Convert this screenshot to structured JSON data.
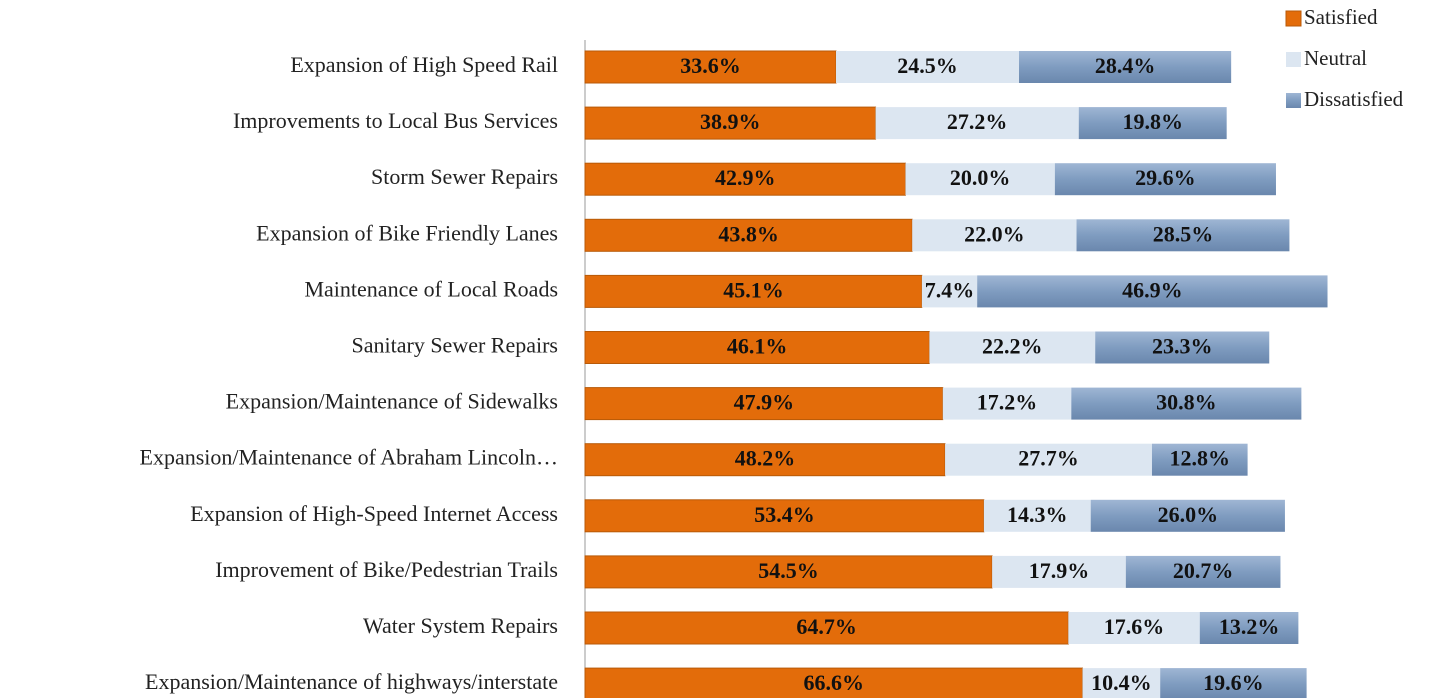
{
  "chart_data": {
    "type": "stacked_barh",
    "categories": [
      "Expansion of High Speed Rail",
      "Improvements to Local Bus Services",
      "Storm Sewer Repairs",
      "Expansion of Bike Friendly Lanes",
      "Maintenance of Local Roads",
      "Sanitary Sewer Repairs",
      "Expansion/Maintenance of Sidewalks",
      "Expansion/Maintenance of Abraham Lincoln…",
      "Expansion of High-Speed Internet Access",
      "Improvement of Bike/Pedestrian Trails",
      "Water System Repairs",
      "Expansion/Maintenance of highways/interstate"
    ],
    "series": [
      {
        "name": "Satisfied",
        "color": "#e36c0a",
        "values": [
          33.6,
          38.9,
          42.9,
          43.8,
          45.1,
          46.1,
          47.9,
          48.2,
          53.4,
          54.5,
          64.7,
          66.6
        ],
        "value_labels": [
          "33.6%",
          "38.9%",
          "42.9%",
          "43.8%",
          "45.1%",
          "46.1%",
          "47.9%",
          "48.2%",
          "53.4%",
          "54.5%",
          "64.7%",
          "66.6%"
        ]
      },
      {
        "name": "Neutral",
        "color": "#dce6f1",
        "values": [
          24.5,
          27.2,
          20.0,
          22.0,
          7.4,
          22.2,
          17.2,
          27.7,
          14.3,
          17.9,
          17.6,
          10.4
        ],
        "value_labels": [
          "24.5%",
          "27.2%",
          "20.0%",
          "22.0%",
          "7.4%",
          "22.2%",
          "17.2%",
          "27.7%",
          "14.3%",
          "17.9%",
          "17.6%",
          "10.4%"
        ]
      },
      {
        "name": "Dissatisfied",
        "color": "#7f9cc0",
        "values": [
          28.4,
          19.8,
          29.6,
          28.5,
          46.9,
          23.3,
          30.8,
          12.8,
          26.0,
          20.7,
          13.2,
          19.6
        ],
        "value_labels": [
          "28.4%",
          "19.8%",
          "29.6%",
          "28.5%",
          "46.9%",
          "23.3%",
          "30.8%",
          "12.8%",
          "26.0%",
          "20.7%",
          "13.2%",
          "19.6%"
        ]
      }
    ],
    "xlim": [
      0,
      100
    ],
    "legend": "upper right"
  }
}
